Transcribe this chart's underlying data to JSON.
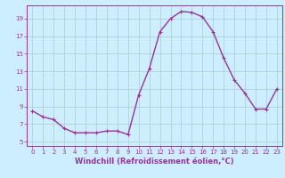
{
  "x": [
    0,
    1,
    2,
    3,
    4,
    5,
    6,
    7,
    8,
    9,
    10,
    11,
    12,
    13,
    14,
    15,
    16,
    17,
    18,
    19,
    20,
    21,
    22,
    23
  ],
  "y": [
    8.5,
    7.8,
    7.5,
    6.5,
    6.0,
    6.0,
    6.0,
    6.2,
    6.2,
    5.8,
    10.3,
    13.3,
    17.5,
    19.0,
    19.8,
    19.7,
    19.2,
    17.5,
    14.5,
    12.0,
    10.5,
    8.7,
    8.7,
    11.0
  ],
  "line_color": "#993399",
  "marker": "+",
  "marker_size": 3,
  "xlabel": "Windchill (Refroidissement éolien,°C)",
  "ylabel": "",
  "title": "",
  "xlim": [
    -0.5,
    23.5
  ],
  "ylim": [
    4.5,
    20.5
  ],
  "yticks": [
    5,
    7,
    9,
    11,
    13,
    15,
    17,
    19
  ],
  "xticks": [
    0,
    1,
    2,
    3,
    4,
    5,
    6,
    7,
    8,
    9,
    10,
    11,
    12,
    13,
    14,
    15,
    16,
    17,
    18,
    19,
    20,
    21,
    22,
    23
  ],
  "bg_color": "#cceeff",
  "grid_color": "#aacccc",
  "font_color": "#993399",
  "tick_fontsize": 5.0,
  "xlabel_fontsize": 6.0,
  "linewidth": 1.0
}
